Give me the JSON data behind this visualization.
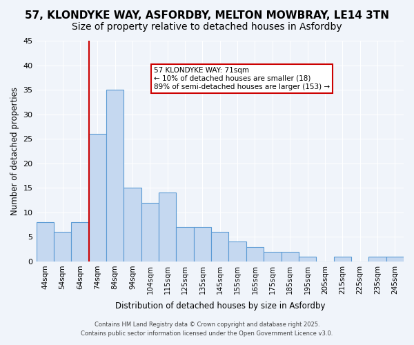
{
  "title": "57, KLONDYKE WAY, ASFORDBY, MELTON MOWBRAY, LE14 3TN",
  "subtitle": "Size of property relative to detached houses in Asfordby",
  "xlabel": "Distribution of detached houses by size in Asfordby",
  "ylabel": "Number of detached properties",
  "categories": [
    "44sqm",
    "54sqm",
    "64sqm",
    "74sqm",
    "84sqm",
    "94sqm",
    "104sqm",
    "115sqm",
    "125sqm",
    "135sqm",
    "145sqm",
    "155sqm",
    "165sqm",
    "175sqm",
    "185sqm",
    "195sqm",
    "205sqm",
    "215sqm",
    "225sqm",
    "235sqm",
    "245sqm"
  ],
  "values": [
    8,
    6,
    8,
    26,
    35,
    15,
    12,
    14,
    7,
    7,
    6,
    4,
    3,
    2,
    2,
    1,
    0,
    1,
    0,
    1,
    1
  ],
  "bar_color": "#c5d8f0",
  "bar_edge_color": "#5a9ad4",
  "vline_x": 2,
  "vline_color": "#cc0000",
  "annotation_text": "57 KLONDYKE WAY: 71sqm\n← 10% of detached houses are smaller (18)\n89% of semi-detached houses are larger (153) →",
  "annotation_box_color": "#ffffff",
  "annotation_box_edge_color": "#cc0000",
  "background_color": "#f0f4fa",
  "grid_color": "#ffffff",
  "ylim": [
    0,
    45
  ],
  "yticks": [
    0,
    5,
    10,
    15,
    20,
    25,
    30,
    35,
    40,
    45
  ],
  "footer_line1": "Contains HM Land Registry data © Crown copyright and database right 2025.",
  "footer_line2": "Contains public sector information licensed under the Open Government Licence v3.0.",
  "title_fontsize": 11,
  "subtitle_fontsize": 10
}
